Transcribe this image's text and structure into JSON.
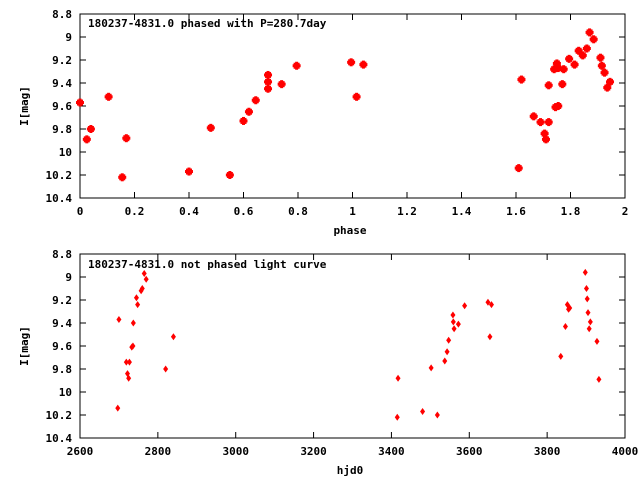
{
  "chart_data": [
    {
      "type": "scatter",
      "title": "180237-4831.0 phased with P=280.7day",
      "xlabel": "phase",
      "ylabel": "I[mag]",
      "xlim": [
        0,
        2
      ],
      "ylim": [
        8.8,
        10.4
      ],
      "y_inverted": true,
      "marker": "square",
      "color": "#ff0000",
      "xticks": [
        0,
        0.2,
        0.4,
        0.6,
        0.8,
        1,
        1.2,
        1.4,
        1.6,
        1.8,
        2
      ],
      "xtick_labels": [
        "0",
        "0.2",
        "0.4",
        "0.6",
        "0.8",
        "1",
        "1.2",
        "1.4",
        "1.6",
        "1.8",
        "2"
      ],
      "yticks": [
        8.8,
        9,
        9.2,
        9.4,
        9.6,
        9.8,
        10,
        10.2,
        10.4
      ],
      "ytick_labels": [
        "8.8",
        "9",
        "9.2",
        "9.4",
        "9.6",
        "9.8",
        "10",
        "10.2",
        "10.4"
      ],
      "series": [
        {
          "points": [
            [
              0.0,
              9.57
            ],
            [
              0.025,
              9.89
            ],
            [
              0.04,
              9.8
            ],
            [
              0.105,
              9.52
            ],
            [
              0.155,
              10.22
            ],
            [
              0.17,
              9.88
            ],
            [
              0.4,
              10.17
            ],
            [
              0.48,
              9.79
            ],
            [
              0.55,
              10.2
            ],
            [
              0.6,
              9.73
            ],
            [
              0.62,
              9.65
            ],
            [
              0.645,
              9.55
            ],
            [
              0.69,
              9.33
            ],
            [
              0.69,
              9.39
            ],
            [
              0.69,
              9.45
            ],
            [
              0.74,
              9.41
            ],
            [
              0.795,
              9.25
            ],
            [
              0.995,
              9.22
            ],
            [
              1.015,
              9.52
            ],
            [
              1.04,
              9.24
            ],
            [
              1.61,
              10.14
            ],
            [
              1.62,
              9.37
            ],
            [
              1.665,
              9.69
            ],
            [
              1.69,
              9.74
            ],
            [
              1.705,
              9.84
            ],
            [
              1.71,
              9.89
            ],
            [
              1.72,
              9.74
            ],
            [
              1.72,
              9.42
            ],
            [
              1.74,
              9.28
            ],
            [
              1.745,
              9.61
            ],
            [
              1.75,
              9.23
            ],
            [
              1.755,
              9.27
            ],
            [
              1.755,
              9.6
            ],
            [
              1.77,
              9.41
            ],
            [
              1.775,
              9.28
            ],
            [
              1.795,
              9.19
            ],
            [
              1.815,
              9.24
            ],
            [
              1.83,
              9.12
            ],
            [
              1.845,
              9.16
            ],
            [
              1.86,
              9.1
            ],
            [
              1.87,
              8.96
            ],
            [
              1.885,
              9.02
            ],
            [
              1.91,
              9.18
            ],
            [
              1.915,
              9.25
            ],
            [
              1.925,
              9.31
            ],
            [
              1.935,
              9.44
            ],
            [
              1.945,
              9.39
            ]
          ]
        }
      ]
    },
    {
      "type": "scatter",
      "title": "180237-4831.0 not phased light curve",
      "xlabel": "hjd0",
      "ylabel": "I[mag]",
      "xlim": [
        2600,
        4000
      ],
      "ylim": [
        8.8,
        10.4
      ],
      "y_inverted": true,
      "marker": "diamond",
      "color": "#ff0000",
      "xticks": [
        2600,
        2800,
        3000,
        3200,
        3400,
        3600,
        3800,
        4000
      ],
      "xtick_labels": [
        "2600",
        "2800",
        "3000",
        "3200",
        "3400",
        "3600",
        "3800",
        "4000"
      ],
      "yticks": [
        8.8,
        9,
        9.2,
        9.4,
        9.6,
        9.8,
        10,
        10.2,
        10.4
      ],
      "ytick_labels": [
        "8.8",
        "9",
        "9.2",
        "9.4",
        "9.6",
        "9.8",
        "10",
        "10.2",
        "10.4"
      ],
      "series": [
        {
          "points": [
            [
              2697,
              10.14
            ],
            [
              2700,
              9.37
            ],
            [
              2719,
              9.74
            ],
            [
              2722,
              9.84
            ],
            [
              2725,
              9.88
            ],
            [
              2727,
              9.74
            ],
            [
              2733,
              9.61
            ],
            [
              2736,
              9.6
            ],
            [
              2737,
              9.4
            ],
            [
              2745,
              9.18
            ],
            [
              2748,
              9.24
            ],
            [
              2757,
              9.12
            ],
            [
              2760,
              9.1
            ],
            [
              2765,
              8.97
            ],
            [
              2770,
              9.02
            ],
            [
              2820,
              9.8
            ],
            [
              2840,
              9.52
            ],
            [
              3415,
              10.22
            ],
            [
              3417,
              9.88
            ],
            [
              3480,
              10.17
            ],
            [
              3502,
              9.79
            ],
            [
              3518,
              10.2
            ],
            [
              3537,
              9.73
            ],
            [
              3543,
              9.65
            ],
            [
              3547,
              9.55
            ],
            [
              3558,
              9.33
            ],
            [
              3559,
              9.39
            ],
            [
              3561,
              9.45
            ],
            [
              3572,
              9.41
            ],
            [
              3588,
              9.25
            ],
            [
              3648,
              9.22
            ],
            [
              3653,
              9.52
            ],
            [
              3657,
              9.24
            ],
            [
              3835,
              9.69
            ],
            [
              3847,
              9.43
            ],
            [
              3852,
              9.24
            ],
            [
              3855,
              9.28
            ],
            [
              3858,
              9.27
            ],
            [
              3898,
              8.96
            ],
            [
              3901,
              9.1
            ],
            [
              3903,
              9.19
            ],
            [
              3905,
              9.31
            ],
            [
              3908,
              9.45
            ],
            [
              3911,
              9.39
            ],
            [
              3928,
              9.56
            ],
            [
              3933,
              9.89
            ]
          ]
        }
      ]
    }
  ]
}
